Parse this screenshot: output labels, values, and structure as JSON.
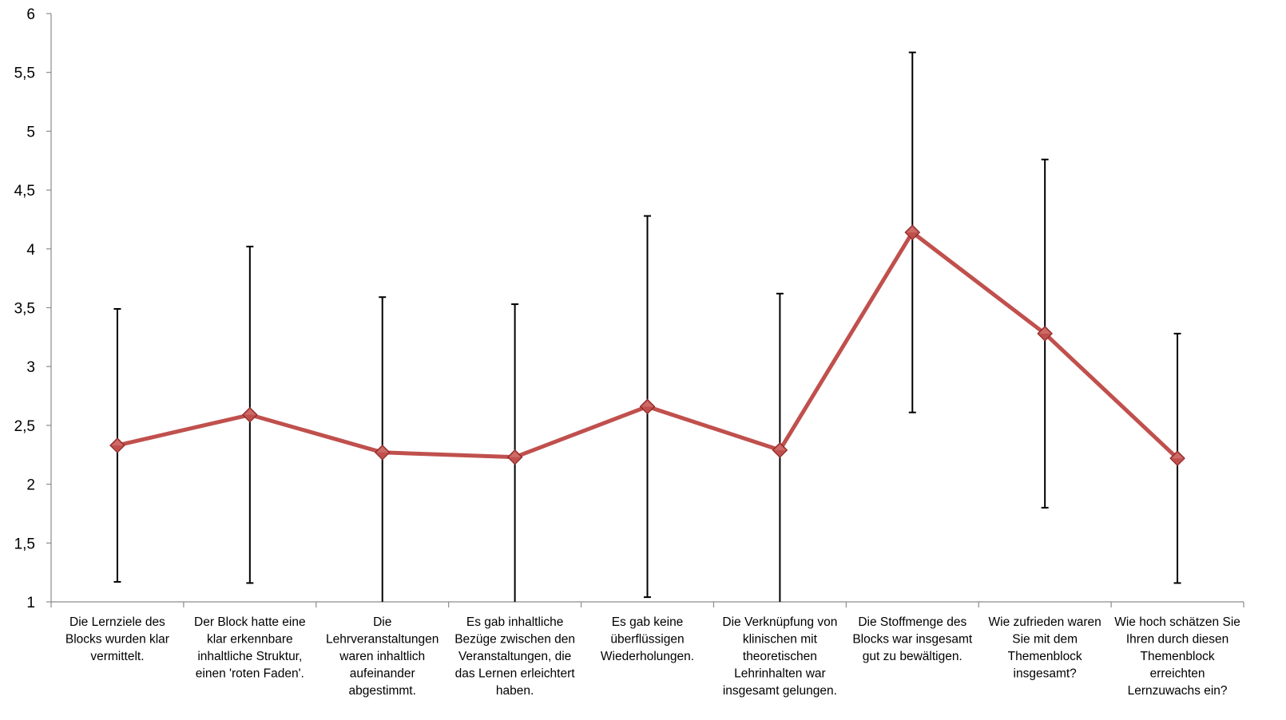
{
  "chart_data": {
    "type": "line",
    "title": "",
    "xlabel": "",
    "ylabel": "",
    "ylim": [
      1,
      6
    ],
    "yticks": [
      "1",
      "1,5",
      "2",
      "2,5",
      "3",
      "3,5",
      "4",
      "4,5",
      "5",
      "5,5",
      "6"
    ],
    "ytick_values": [
      1,
      1.5,
      2,
      2.5,
      3,
      3.5,
      4,
      4.5,
      5,
      5.5,
      6
    ],
    "grid": false,
    "legend": "none",
    "categories": [
      [
        "Die Lernziele des",
        "Blocks wurden klar",
        "vermittelt."
      ],
      [
        "Der Block hatte eine",
        "klar erkennbare",
        "inhaltliche Struktur,",
        "einen 'roten Faden'."
      ],
      [
        "Die",
        "Lehrveranstaltungen",
        "waren inhaltlich",
        "aufeinander",
        "abgestimmt."
      ],
      [
        "Es gab inhaltliche",
        "Bezüge zwischen den",
        "Veranstaltungen, die",
        "das Lernen erleichtert",
        "haben."
      ],
      [
        "Es gab keine",
        "überflüssigen",
        "Wiederholungen."
      ],
      [
        "Die Verknüpfung von",
        "klinischen mit",
        "theoretischen",
        "Lehrinhalten war",
        "insgesamt gelungen."
      ],
      [
        "Die Stoffmenge des",
        "Blocks war insgesamt",
        "gut zu bewältigen."
      ],
      [
        "Wie zufrieden waren",
        "Sie mit dem",
        "Themenblock",
        "insgesamt?"
      ],
      [
        "Wie hoch schätzen Sie",
        "Ihren durch diesen",
        "Themenblock",
        "erreichten",
        "Lernzuwachs ein?"
      ]
    ],
    "series": [
      {
        "color": "#c0504d",
        "marker": "diamond",
        "values": [
          2.33,
          2.59,
          2.27,
          2.23,
          2.66,
          2.29,
          4.14,
          3.28,
          2.22
        ],
        "error_upper": [
          3.49,
          4.02,
          3.59,
          3.53,
          4.28,
          3.62,
          5.67,
          4.76,
          3.28
        ],
        "error_lower": [
          1.17,
          1.16,
          1.0,
          1.0,
          1.04,
          1.0,
          2.61,
          1.8,
          1.16
        ]
      }
    ],
    "colors": {
      "line": "#c0504d",
      "marker_fill": "#c0504d",
      "marker_edge": "#8b2a27",
      "error_bar": "#000000",
      "axis": "#8c8c8c"
    }
  }
}
